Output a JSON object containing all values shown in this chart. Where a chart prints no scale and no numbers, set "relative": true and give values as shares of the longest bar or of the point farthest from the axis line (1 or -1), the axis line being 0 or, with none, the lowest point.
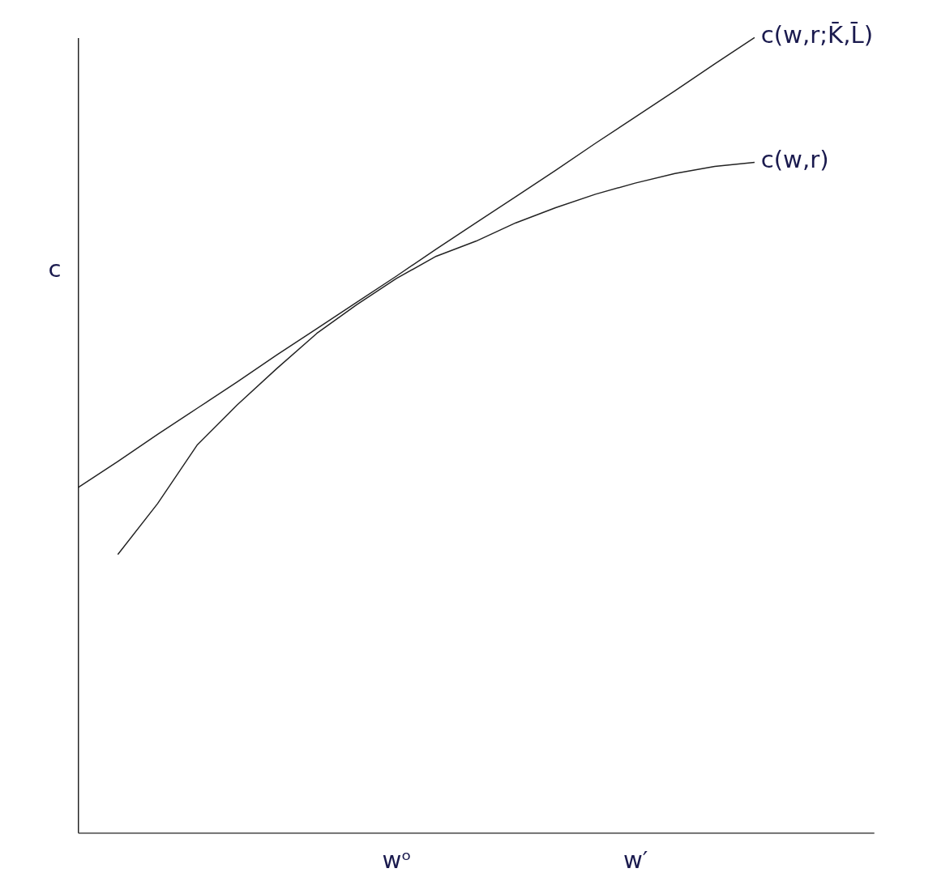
{
  "chart_data": {
    "type": "line",
    "relative": true,
    "ylabel": "c",
    "categories": [
      null,
      null,
      null,
      null,
      null,
      null,
      null,
      null,
      "wᵒ",
      null,
      null,
      null,
      null,
      null,
      "w′",
      null,
      null,
      null,
      null,
      null,
      null
    ],
    "tick_labels": "x",
    "grid": false,
    "marker": "none",
    "line_style": "solid",
    "series": [
      {
        "name": "c(w,r;K̄,L̄)",
        "color": "#222222",
        "values": [
          0.434,
          0.467,
          0.501,
          0.534,
          0.567,
          0.601,
          0.634,
          0.667,
          0.7,
          0.734,
          0.767,
          0.8,
          0.833,
          0.867,
          0.9,
          0.933,
          0.967,
          1.0,
          null,
          null,
          null
        ]
      },
      {
        "name": "c(w,r)",
        "color": "#222222",
        "values": [
          null,
          0.35,
          0.414,
          0.488,
          0.538,
          0.584,
          0.628,
          0.664,
          0.697,
          0.725,
          0.744,
          0.767,
          0.786,
          0.803,
          0.817,
          0.829,
          0.838,
          0.843,
          null,
          null,
          null
        ]
      }
    ]
  }
}
